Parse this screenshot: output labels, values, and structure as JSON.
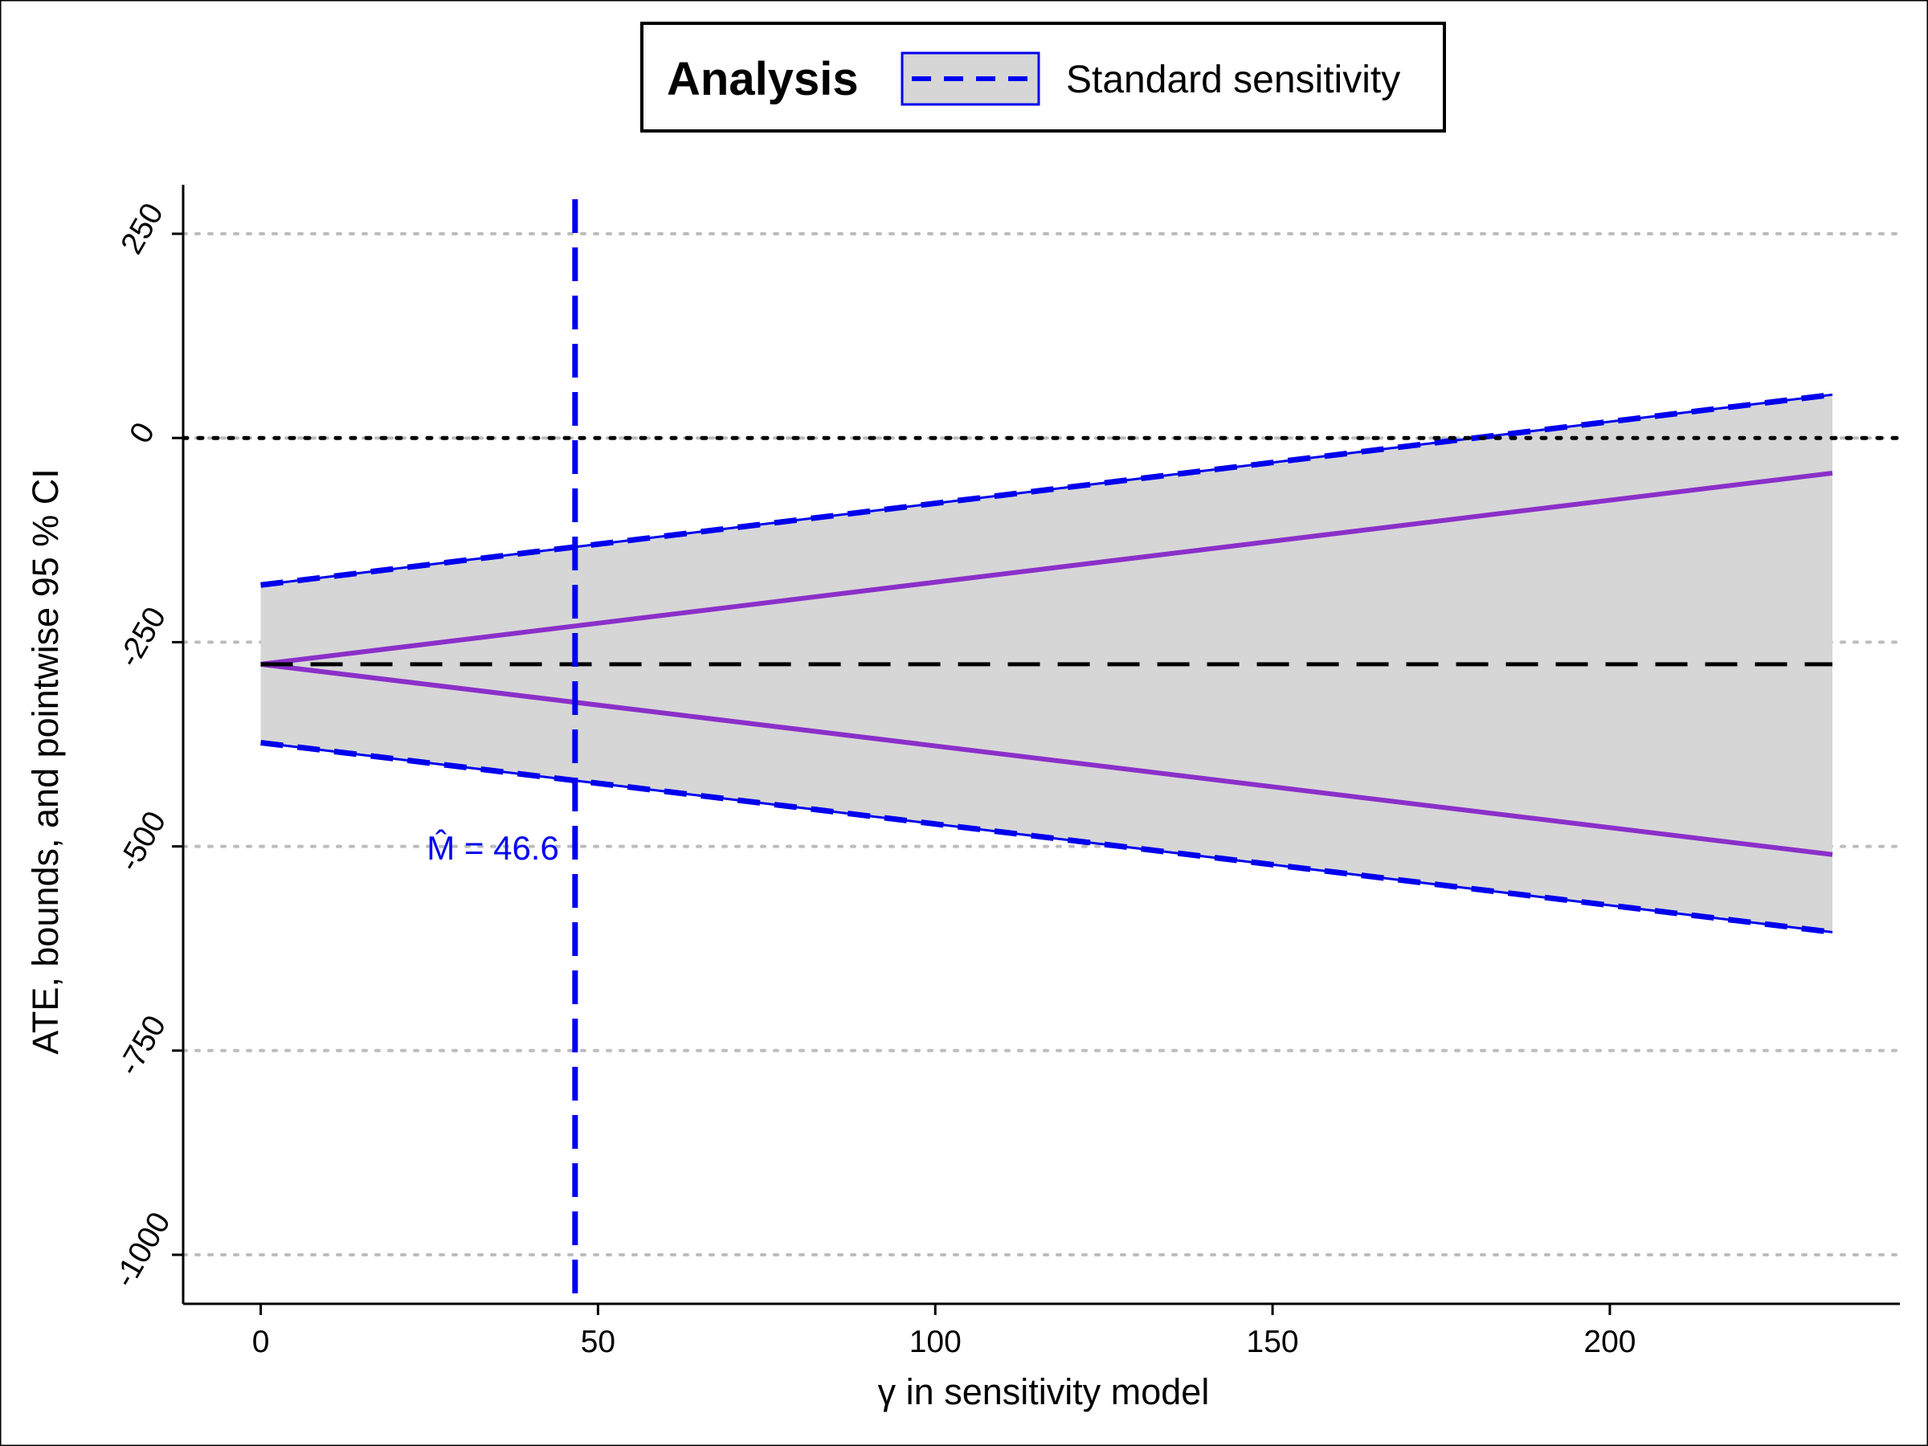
{
  "chart_data": {
    "type": "line",
    "xlabel": "γ in sensitivity model",
    "ylabel": "ATE, bounds, and pointwise 95 %  CI",
    "xlim": [
      -11.5,
      243
    ],
    "ylim": [
      -1060,
      310
    ],
    "x_ticks": [
      0,
      50,
      100,
      150,
      200
    ],
    "y_ticks": [
      250,
      0,
      -250,
      -500,
      -750,
      -1000
    ],
    "grid": "horizontal dotted at y ticks",
    "legend": {
      "position": "top",
      "title": "Analysis",
      "entries": [
        {
          "label": "Standard sensitivity",
          "color": "#0000ee",
          "style": "dashed"
        }
      ]
    },
    "series": [
      {
        "name": "Standard sensitivity",
        "role": "ci-upper",
        "x": [
          0,
          233
        ],
        "y": [
          -180,
          53
        ],
        "color": "#0000ee",
        "style": "dashed"
      },
      {
        "name": "Standard sensitivity",
        "role": "ci-lower",
        "x": [
          0,
          233
        ],
        "y": [
          -373,
          -605
        ],
        "color": "#0000ee",
        "style": "dashed"
      },
      {
        "role": "bound-upper",
        "x": [
          0,
          233
        ],
        "y": [
          -277,
          -43
        ],
        "color": "#8b2fc9",
        "style": "solid"
      },
      {
        "role": "bound-lower",
        "x": [
          0,
          233
        ],
        "y": [
          -277,
          -510
        ],
        "color": "#8b2fc9",
        "style": "solid"
      }
    ],
    "ci_band_color": "#d6d6d6",
    "point_estimate": {
      "y": -277,
      "x_range": [
        0,
        233
      ],
      "color": "#000000",
      "style": "dashed"
    },
    "zero_line": {
      "y": 0,
      "color": "#000000",
      "style": "dotted"
    },
    "breakdown": {
      "x": 46.6,
      "label": "M̂ = 46.6",
      "color": "#0000ee",
      "style": "dashed"
    }
  }
}
